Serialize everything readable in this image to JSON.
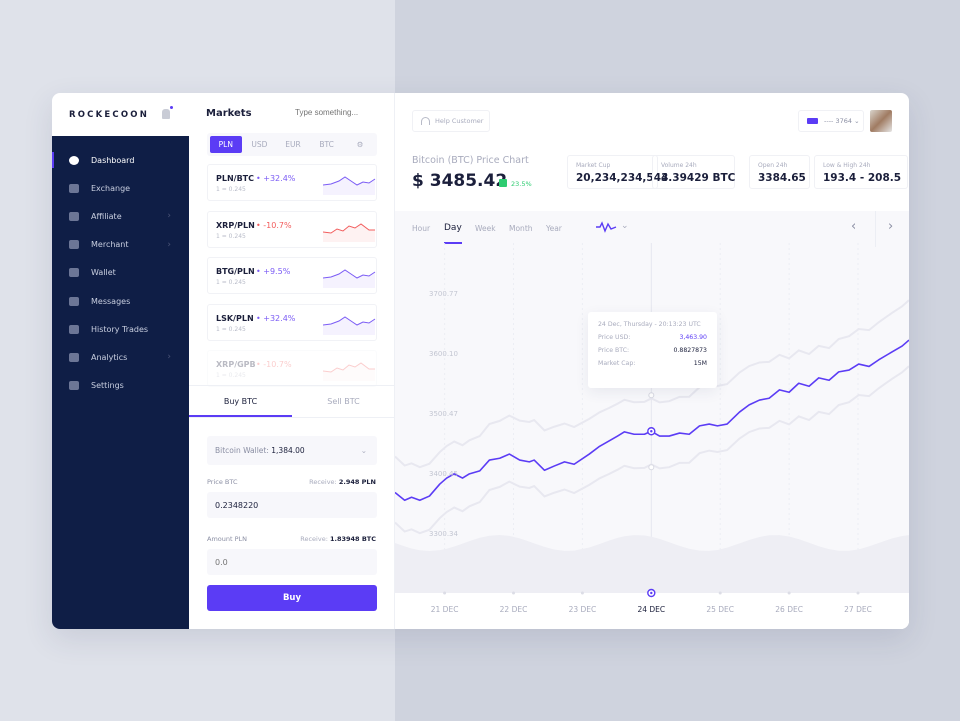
{
  "brand": "ROCKECOON",
  "sidebar": {
    "items": [
      {
        "label": "Dashboard",
        "icon": "dashboard-icon",
        "active": true
      },
      {
        "label": "Exchange",
        "icon": "exchange-icon"
      },
      {
        "label": "Affiliate",
        "icon": "affiliate-icon",
        "submenu": true
      },
      {
        "label": "Merchant",
        "icon": "basket-icon",
        "submenu": true
      },
      {
        "label": "Wallet",
        "icon": "wallet-icon"
      },
      {
        "label": "Messages",
        "icon": "mail-icon"
      },
      {
        "label": "History Trades",
        "icon": "clock-icon"
      },
      {
        "label": "Analytics",
        "icon": "analytics-icon",
        "submenu": true
      },
      {
        "label": "Settings",
        "icon": "settings-sliders-icon"
      }
    ]
  },
  "markets": {
    "title": "Markets",
    "search_placeholder": "Type something...",
    "currencies": [
      "PLN",
      "USD",
      "EUR",
      "BTC"
    ],
    "active_currency": "PLN",
    "pairs": [
      {
        "name": "PLN/BTC",
        "change": "+32.4%",
        "rate": "1 = 0.245",
        "trend": "up"
      },
      {
        "name": "XRP/PLN",
        "change": "-10.7%",
        "rate": "1 = 0.245",
        "trend": "down"
      },
      {
        "name": "BTG/PLN",
        "change": "+9.5%",
        "rate": "1 = 0.245",
        "trend": "up"
      },
      {
        "name": "LSK/PLN",
        "change": "+32.4%",
        "rate": "1 = 0.245",
        "trend": "up"
      },
      {
        "name": "XRP/GPB",
        "change": "-10.7%",
        "rate": "1 = 0.245",
        "trend": "down"
      }
    ]
  },
  "trade": {
    "tabs": [
      "Buy BTC",
      "Sell BTC"
    ],
    "active_tab": "Buy BTC",
    "wallet_label": "Bitcoin Wallet:",
    "wallet_value": "1,384.00",
    "price_label": "Price BTC",
    "price_receive_label": "Receive:",
    "price_receive_value": "2.948 PLN",
    "price_value": "0.2348220",
    "amount_label": "Amount PLN",
    "amount_receive_label": "Receive:",
    "amount_receive_value": "1.83948 BTC",
    "amount_placeholder": "0.0",
    "buy_label": "Buy"
  },
  "header": {
    "help_label": "Help Customer",
    "account": "---- 3764"
  },
  "summary": {
    "title": "Bitcoin (BTC) Price Chart",
    "price": "$ 3485.42",
    "change": "23.5%",
    "stats": [
      {
        "label": "Market Cup",
        "value": "20,234,234,543"
      },
      {
        "label": "Volume 24h",
        "value": "4.39429 BTC"
      },
      {
        "label": "Open 24h",
        "value": "3384.65"
      },
      {
        "label": "Low & High 24h",
        "value": "193.4 - 208.5"
      }
    ]
  },
  "ranges": [
    "Hour",
    "Day",
    "Week",
    "Month",
    "Year"
  ],
  "active_range": "Day",
  "tooltip": {
    "title": "24 Dec, Thursday - 20:13:23 UTC",
    "rows": [
      {
        "label": "Price USD:",
        "value": "3,463.90"
      },
      {
        "label": "Price BTC:",
        "value": "0.8827873"
      },
      {
        "label": "Market Cap:",
        "value": "15M"
      }
    ]
  },
  "colors": {
    "accent": "#5b3cf5",
    "sidebar": "#0f1e46",
    "positive": "#2ecc71",
    "negative": "#f25c5c"
  },
  "chart_data": {
    "type": "line",
    "yticks": [
      "3700.77",
      "3600.10",
      "3500.47",
      "3400.45",
      "3300.34"
    ],
    "xticks": [
      "21 DEC",
      "22 DEC",
      "23 DEC",
      "24 DEC",
      "25 DEC",
      "26 DEC",
      "27 DEC"
    ],
    "highlighted": "24 DEC",
    "ylim": [
      3230,
      3760
    ],
    "xlim": [
      20.28,
      27.74
    ],
    "x": [
      20.28,
      20.42,
      20.52,
      20.64,
      20.78,
      20.93,
      21.03,
      21.14,
      21.26,
      21.36,
      21.51,
      21.65,
      21.8,
      21.94,
      22.09,
      22.23,
      22.3,
      22.45,
      22.59,
      22.74,
      22.88,
      23.1,
      23.25,
      23.39,
      23.51,
      23.61,
      23.75,
      23.9,
      24.0,
      24.12,
      24.26,
      24.41,
      24.55,
      24.7,
      24.84,
      24.96,
      25.1,
      25.28,
      25.42,
      25.57,
      25.71,
      25.86,
      26.0,
      26.14,
      26.29,
      26.43,
      26.58,
      26.72,
      26.87,
      27.01,
      27.16,
      27.3,
      27.49,
      27.64,
      27.74
    ],
    "y": [
      3370,
      3357,
      3362,
      3357,
      3364,
      3384,
      3394,
      3401,
      3394,
      3401,
      3406,
      3424,
      3427,
      3434,
      3424,
      3421,
      3424,
      3407,
      3414,
      3421,
      3417,
      3434,
      3447,
      3456,
      3464,
      3471,
      3467,
      3467,
      3472,
      3464,
      3464,
      3469,
      3467,
      3481,
      3484,
      3481,
      3484,
      3504,
      3516,
      3524,
      3527,
      3541,
      3537,
      3552,
      3547,
      3561,
      3557,
      3571,
      3574,
      3584,
      3580,
      3591,
      3604,
      3614,
      3624
    ]
  }
}
